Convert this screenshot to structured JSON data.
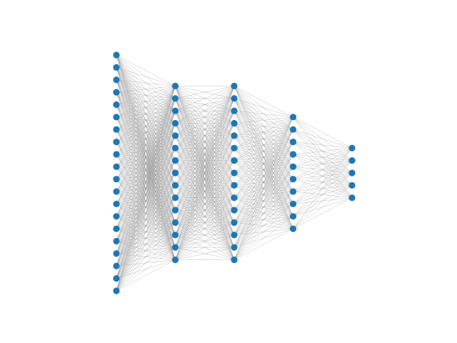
{
  "network": {
    "layer_sizes": [
      20,
      15,
      15,
      10,
      5
    ],
    "connectivity": "fully-connected",
    "node_color": "#1f77b4",
    "edge_color": "#7f7f7f"
  }
}
